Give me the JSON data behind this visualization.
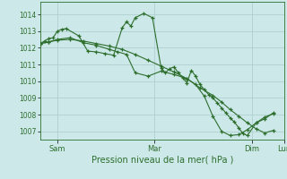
{
  "background_color": "#cce8e8",
  "grid_color": "#aacccc",
  "line_color": "#2d6e2d",
  "marker_color": "#2d6e2d",
  "xlabel": "Pression niveau de la mer( hPa )",
  "ylim": [
    1006.5,
    1014.75
  ],
  "yticks": [
    1007,
    1008,
    1009,
    1010,
    1011,
    1012,
    1013,
    1014
  ],
  "xlim": [
    0,
    108
  ],
  "xtick_labels": [
    "Sam",
    "Mar",
    "Dim",
    "Lun",
    ""
  ],
  "series1_x": [
    0,
    2,
    4,
    6,
    8,
    10,
    12,
    18,
    22,
    26,
    30,
    34,
    38,
    40,
    42,
    44,
    48,
    52,
    56,
    58,
    60,
    62,
    64,
    66,
    68,
    70,
    72,
    74,
    76,
    78,
    80,
    82,
    84,
    86,
    88,
    90,
    92,
    94,
    96,
    100,
    104,
    108
  ],
  "series1_y": [
    1012.25,
    1012.4,
    1012.55,
    1012.6,
    1013.0,
    1013.1,
    1013.15,
    1012.7,
    1011.8,
    1011.75,
    1011.65,
    1011.55,
    1013.2,
    1013.55,
    1013.3,
    1013.8,
    1014.05,
    1013.8,
    1010.8,
    1010.5,
    1010.75,
    1010.85,
    1010.5,
    1010.2,
    1009.9,
    1010.65,
    1010.3,
    1009.8,
    1009.5,
    1009.2,
    1009.0,
    1008.7,
    1008.4,
    1008.1,
    1007.8,
    1007.55,
    1007.2,
    1006.85,
    1006.75,
    1007.5,
    1007.75,
    1008.1
  ],
  "series2_x": [
    0,
    4,
    8,
    14,
    20,
    26,
    32,
    38,
    44,
    50,
    56,
    62,
    68,
    74,
    80,
    84,
    88,
    92,
    96,
    100,
    104,
    108
  ],
  "series2_y": [
    1012.25,
    1012.35,
    1012.45,
    1012.5,
    1012.4,
    1012.25,
    1012.1,
    1011.9,
    1011.6,
    1011.25,
    1010.9,
    1010.55,
    1010.15,
    1009.6,
    1009.15,
    1008.75,
    1008.3,
    1007.9,
    1007.5,
    1007.15,
    1006.9,
    1007.05
  ],
  "series3_x": [
    0,
    4,
    8,
    14,
    20,
    26,
    32,
    36,
    40,
    44,
    50,
    56,
    62,
    68,
    72,
    76,
    80,
    84,
    88,
    92,
    96,
    100,
    104,
    108
  ],
  "series3_y": [
    1012.25,
    1012.35,
    1012.5,
    1012.6,
    1012.3,
    1012.15,
    1011.9,
    1011.75,
    1011.6,
    1010.5,
    1010.3,
    1010.6,
    1010.4,
    1010.15,
    1009.8,
    1009.1,
    1007.9,
    1007.0,
    1006.75,
    1006.8,
    1007.1,
    1007.5,
    1007.85,
    1008.05
  ]
}
